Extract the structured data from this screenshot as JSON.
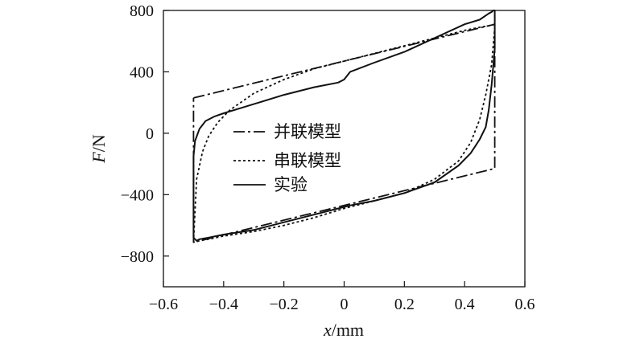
{
  "chart_data": {
    "type": "line",
    "title": "",
    "xlabel": {
      "var": "x",
      "unit": "/mm"
    },
    "ylabel": {
      "var": "F",
      "unit": "/N"
    },
    "xlim": [
      -0.6,
      0.6
    ],
    "ylim": [
      -1000,
      800
    ],
    "xticks": [
      -0.6,
      -0.4,
      -0.2,
      0,
      0.2,
      0.4,
      0.6
    ],
    "xtick_labels": [
      "−0.6",
      "−0.4",
      "−0.2",
      "0",
      "0.2",
      "0.4",
      "0.6"
    ],
    "yticks": [
      800,
      400,
      0,
      -400,
      -800
    ],
    "ytick_labels": [
      "800",
      "400",
      "0",
      "−400",
      "−800"
    ],
    "grid": false,
    "legend_position": "center-left",
    "series": [
      {
        "name": "并联模型",
        "style": "dashdot",
        "x": [
          -0.5,
          0.5,
          0.5,
          -0.5,
          -0.5
        ],
        "y": [
          230,
          710,
          -230,
          -710,
          230
        ]
      },
      {
        "name": "串联模型",
        "style": "dotted",
        "x": [
          -0.5,
          -0.49,
          -0.47,
          -0.45,
          -0.42,
          -0.38,
          -0.3,
          -0.2,
          -0.1,
          0.0,
          0.1,
          0.2,
          0.3,
          0.4,
          0.45,
          0.48,
          0.5,
          0.5,
          0.49,
          0.47,
          0.45,
          0.42,
          0.38,
          0.3,
          0.2,
          0.1,
          0.0,
          -0.1,
          -0.2,
          -0.3,
          -0.4,
          -0.45,
          -0.48,
          -0.5,
          -0.5
        ],
        "y": [
          -710,
          -300,
          -120,
          -20,
          70,
          150,
          260,
          350,
          420,
          470,
          520,
          570,
          620,
          670,
          690,
          700,
          710,
          690,
          450,
          250,
          90,
          -60,
          -180,
          -300,
          -390,
          -440,
          -490,
          -550,
          -600,
          -640,
          -670,
          -690,
          -700,
          -710,
          -710
        ]
      },
      {
        "name": "实验",
        "style": "solid",
        "x": [
          -0.5,
          -0.5,
          -0.495,
          -0.48,
          -0.46,
          -0.43,
          -0.4,
          -0.35,
          -0.3,
          -0.2,
          -0.1,
          -0.02,
          0.0,
          0.02,
          0.1,
          0.2,
          0.3,
          0.4,
          0.45,
          0.48,
          0.49,
          0.495,
          0.5,
          0.5,
          0.49,
          0.48,
          0.47,
          0.45,
          0.42,
          0.38,
          0.3,
          0.2,
          0.1,
          0.02,
          0.0,
          -0.1,
          -0.2,
          -0.3,
          -0.4,
          -0.45,
          -0.48,
          -0.49,
          -0.5
        ],
        "y": [
          -680,
          -150,
          -50,
          30,
          80,
          110,
          130,
          160,
          190,
          250,
          300,
          330,
          350,
          400,
          460,
          530,
          620,
          710,
          740,
          780,
          790,
          800,
          800,
          550,
          320,
          150,
          40,
          -40,
          -130,
          -210,
          -320,
          -390,
          -440,
          -470,
          -480,
          -530,
          -580,
          -630,
          -660,
          -680,
          -690,
          -700,
          -680
        ]
      }
    ]
  }
}
